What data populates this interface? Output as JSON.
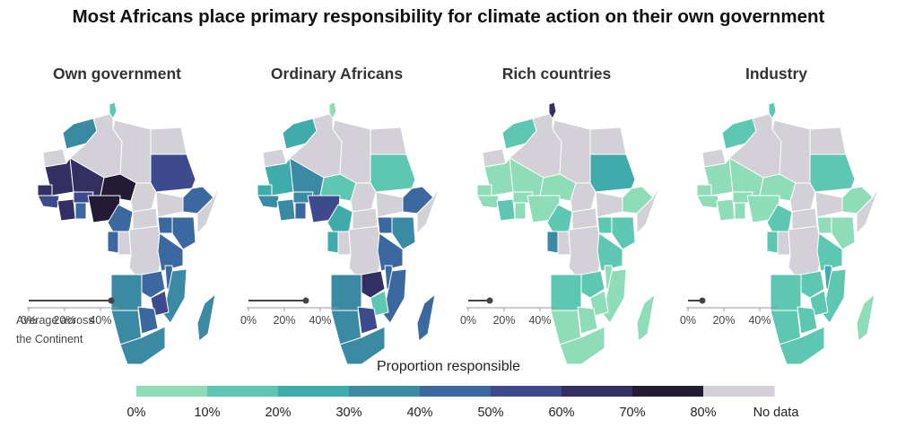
{
  "title": "Most Africans place primary responsibility for climate action on their own government",
  "avg_label_line1": "Average across",
  "avg_label_line2": "the Continent",
  "axis_ticks": [
    "0%",
    "20%",
    "40%"
  ],
  "legend": {
    "title": "Proportion responsible",
    "colors": [
      "#8fddb8",
      "#5ec7b1",
      "#3fabaa",
      "#3a8aa3",
      "#3a689f",
      "#3d4a8d",
      "#342f63",
      "#231b36",
      "#d3d0d7"
    ],
    "labels": [
      "0%",
      "10%",
      "20%",
      "30%",
      "40%",
      "50%",
      "60%",
      "70%",
      "80%",
      "No data"
    ]
  },
  "panels": [
    {
      "name": "own-government",
      "title": "Own government",
      "average": 46
    },
    {
      "name": "ordinary-africans",
      "title": "Ordinary Africans",
      "average": 32
    },
    {
      "name": "rich-countries",
      "title": "Rich countries",
      "average": 12
    },
    {
      "name": "industry",
      "title": "Industry",
      "average": 8
    }
  ],
  "chart_data": {
    "type": "choropleth",
    "title": "Most Africans place primary responsibility for climate action on their own government",
    "legend_title": "Proportion responsible",
    "legend_bins": [
      "0%",
      "10%",
      "20%",
      "30%",
      "40%",
      "50%",
      "60%",
      "70%",
      "80%"
    ],
    "no_data_label": "No data",
    "average_axis_ticks": [
      0,
      20,
      40
    ],
    "series": [
      {
        "name": "Own government",
        "continent_average_percent": 46
      },
      {
        "name": "Ordinary Africans",
        "continent_average_percent": 32
      },
      {
        "name": "Rich countries",
        "continent_average_percent": 12
      },
      {
        "name": "Industry",
        "continent_average_percent": 8
      }
    ]
  }
}
